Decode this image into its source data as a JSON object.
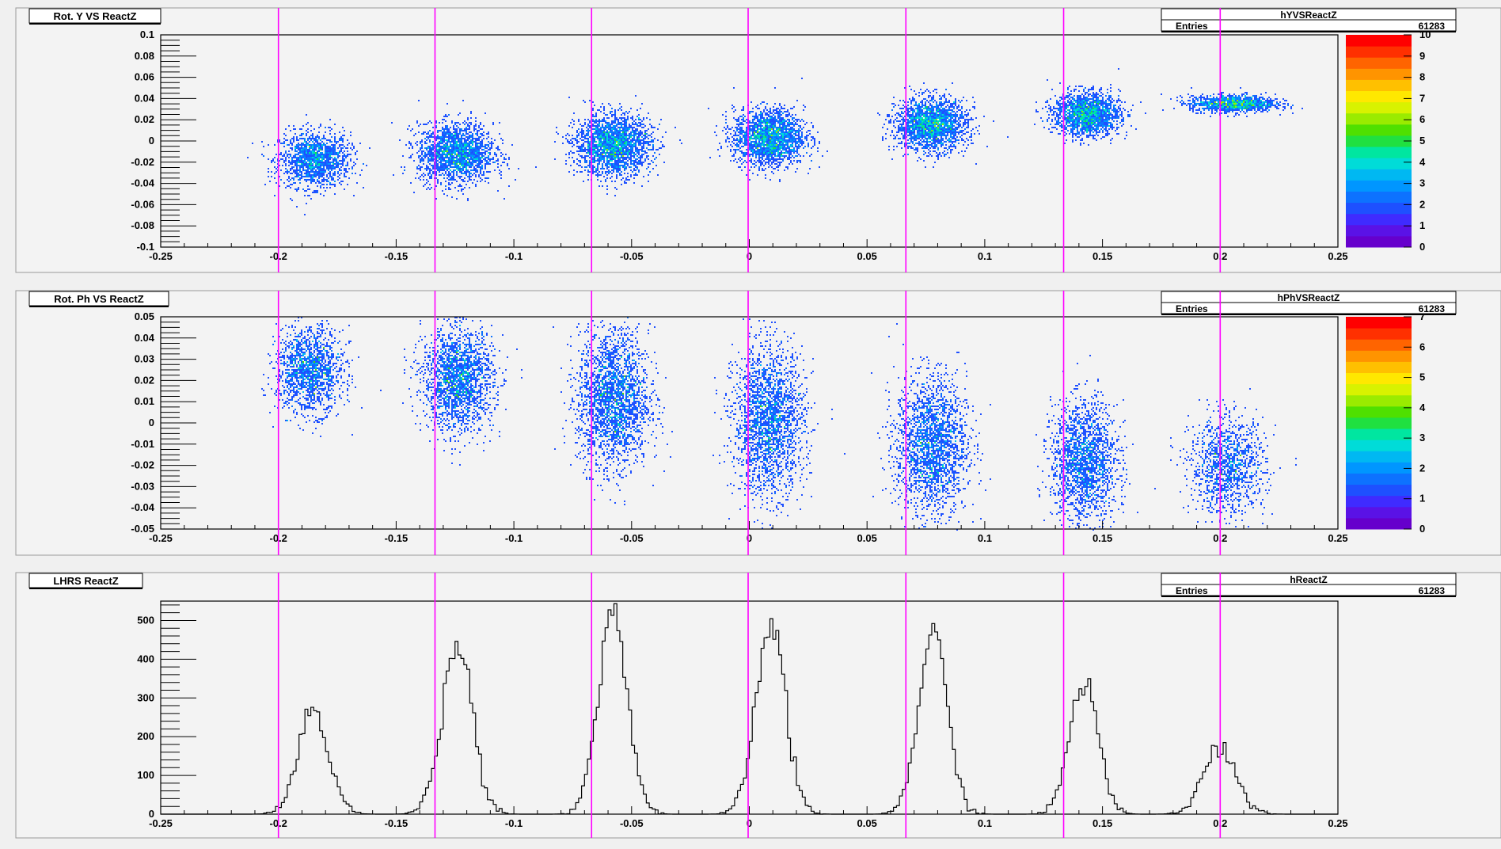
{
  "canvas": {
    "background": "#f0f0f0",
    "marker_color": "#ff00ff"
  },
  "markers": [
    -0.2,
    -0.1335,
    -0.067,
    -0.0005,
    0.0665,
    0.1335,
    0.2
  ],
  "panels": [
    {
      "id": "yvs",
      "title": "Rot. Y VS ReactZ",
      "stats": {
        "name": "hYVSReactZ",
        "label": "Entries",
        "value": "61283"
      },
      "palette_labels": [
        "0",
        "1",
        "2",
        "3",
        "4",
        "5",
        "6",
        "7",
        "8",
        "9",
        "10"
      ]
    },
    {
      "id": "phvs",
      "title": "Rot. Ph VS ReactZ",
      "stats": {
        "name": "hPhVSReactZ",
        "label": "Entries",
        "value": "61283"
      },
      "palette_labels": [
        "0",
        "1",
        "2",
        "3",
        "4",
        "5",
        "6",
        "7"
      ]
    },
    {
      "id": "hist",
      "title": "LHRS ReactZ",
      "stats": {
        "name": "hReactZ",
        "label": "Entries",
        "value": "61283"
      }
    }
  ],
  "chart_data": [
    {
      "type": "heatmap",
      "title": "Rot. Y VS ReactZ",
      "xlim": [
        -0.25,
        0.25
      ],
      "ylim": [
        -0.1,
        0.1
      ],
      "xticks": [
        "-0.25",
        "-0.2",
        "-0.15",
        "-0.1",
        "-0.05",
        "0",
        "0.05",
        "0.1",
        "0.15",
        "0.2",
        "0.25"
      ],
      "yticks": [
        "-0.1",
        "-0.08",
        "-0.06",
        "-0.04",
        "-0.02",
        "0",
        "0.02",
        "0.04",
        "0.06",
        "0.08",
        "0.1"
      ],
      "zlim": [
        0,
        10
      ],
      "clusters": [
        {
          "x": -0.185,
          "y": -0.017,
          "sx": 0.0075,
          "sy": 0.013,
          "n": 1500
        },
        {
          "x": -0.125,
          "y": -0.011,
          "sx": 0.008,
          "sy": 0.014,
          "n": 2000
        },
        {
          "x": -0.058,
          "y": -0.003,
          "sx": 0.008,
          "sy": 0.014,
          "n": 2300
        },
        {
          "x": 0.008,
          "y": 0.004,
          "sx": 0.0075,
          "sy": 0.013,
          "n": 2200
        },
        {
          "x": 0.077,
          "y": 0.016,
          "sx": 0.0075,
          "sy": 0.012,
          "n": 2100
        },
        {
          "x": 0.143,
          "y": 0.026,
          "sx": 0.007,
          "sy": 0.01,
          "n": 1800
        },
        {
          "x": 0.205,
          "y": 0.036,
          "sx": 0.009,
          "sy": 0.004,
          "n": 1200
        }
      ]
    },
    {
      "type": "heatmap",
      "title": "Rot. Ph VS ReactZ",
      "xlim": [
        -0.25,
        0.25
      ],
      "ylim": [
        -0.05,
        0.05
      ],
      "xticks": [
        "-0.25",
        "-0.2",
        "-0.15",
        "-0.1",
        "-0.05",
        "0",
        "0.05",
        "0.1",
        "0.15",
        "0.2",
        "0.25"
      ],
      "yticks": [
        "-0.05",
        "-0.04",
        "-0.03",
        "-0.02",
        "-0.01",
        "0",
        "0.01",
        "0.02",
        "0.03",
        "0.04",
        "0.05"
      ],
      "zlim": [
        0,
        7
      ],
      "clusters": [
        {
          "x": -0.187,
          "y": 0.025,
          "sx": 0.007,
          "sy": 0.01,
          "n": 1500
        },
        {
          "x": -0.124,
          "y": 0.021,
          "sx": 0.0075,
          "sy": 0.012,
          "n": 2000
        },
        {
          "x": -0.058,
          "y": 0.012,
          "sx": 0.0075,
          "sy": 0.016,
          "n": 2300
        },
        {
          "x": 0.008,
          "y": 0.001,
          "sx": 0.0075,
          "sy": 0.017,
          "n": 2200
        },
        {
          "x": 0.077,
          "y": -0.01,
          "sx": 0.0075,
          "sy": 0.016,
          "n": 2100
        },
        {
          "x": 0.142,
          "y": -0.018,
          "sx": 0.007,
          "sy": 0.014,
          "n": 1800
        },
        {
          "x": 0.203,
          "y": -0.02,
          "sx": 0.008,
          "sy": 0.011,
          "n": 1200
        }
      ]
    },
    {
      "type": "bar",
      "title": "LHRS ReactZ",
      "xlim": [
        -0.25,
        0.25
      ],
      "ylim": [
        0,
        550
      ],
      "xticks": [
        "-0.25",
        "-0.2",
        "-0.15",
        "-0.1",
        "-0.05",
        "0",
        "0.05",
        "0.1",
        "0.15",
        "0.2",
        "0.25"
      ],
      "yticks": [
        "0",
        "100",
        "200",
        "300",
        "400",
        "500"
      ],
      "peaks": [
        {
          "x": -0.185,
          "height": 265,
          "sigma": 0.0065
        },
        {
          "x": -0.124,
          "height": 440,
          "sigma": 0.0065
        },
        {
          "x": -0.058,
          "height": 525,
          "sigma": 0.0062
        },
        {
          "x": 0.009,
          "height": 490,
          "sigma": 0.0062
        },
        {
          "x": 0.078,
          "height": 460,
          "sigma": 0.0062
        },
        {
          "x": 0.142,
          "height": 345,
          "sigma": 0.006
        },
        {
          "x": 0.2,
          "height": 170,
          "sigma": 0.007
        }
      ]
    }
  ]
}
